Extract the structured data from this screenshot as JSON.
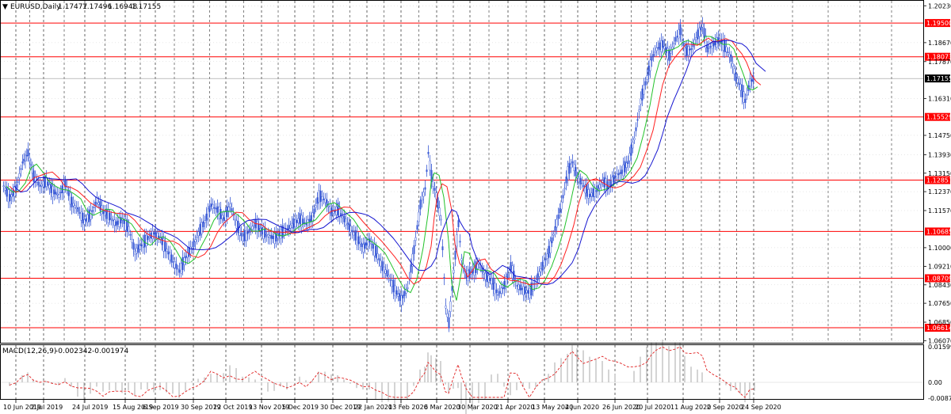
{
  "symbol": {
    "title": "EURUSD,Daily",
    "open": "1.17477",
    "high": "1.17496",
    "low": "1.16948",
    "close": "1.17155"
  },
  "macd": {
    "title": "MACD(12,26,9)",
    "main": "-0.002342",
    "signal": "-0.001974",
    "axis_labels": [
      "0.015993",
      "0.00",
      "-0.008748"
    ]
  },
  "price_axis": {
    "labels": [
      "1.20230",
      "1.18670",
      "1.17870",
      "1.16310",
      "1.14750",
      "1.13930",
      "1.13150",
      "1.12370",
      "1.11570",
      "1.10000",
      "1.09210",
      "1.08430",
      "1.07650",
      "1.06850",
      "1.06070"
    ]
  },
  "current_price": "1.17155",
  "horizontal_lines": [
    {
      "label": "1.19500",
      "value": 1.195
    },
    {
      "label": "1.18073",
      "value": 1.18073
    },
    {
      "label": "1.15529",
      "value": 1.15529
    },
    {
      "label": "1.12857",
      "value": 1.12857
    },
    {
      "label": "1.10685",
      "value": 1.10685
    },
    {
      "label": "1.08709",
      "value": 1.08709
    },
    {
      "label": "1.06614",
      "value": 1.06614
    }
  ],
  "date_labels": [
    "10 Jun 2019",
    "2 Jul 2019",
    "24 Jul 2019",
    "15 Aug 2019",
    "6 Sep 2019",
    "30 Sep 2019",
    "22 Oct 2019",
    "13 Nov 2019",
    "5 Dec 2019",
    "30 Dec 2019",
    "22 Jan 2020",
    "13 Feb 2020",
    "6 Mar 2020",
    "30 Mar 2020",
    "21 Apr 2020",
    "13 May 2020",
    "4 Jun 2020",
    "26 Jun 2020",
    "20 Jul 2020",
    "11 Aug 2020",
    "2 Sep 2020",
    "24 Sep 2020"
  ],
  "colors": {
    "candles": "#3b5bd6",
    "ma_fast": "#22c22a",
    "ma_mid": "#ff2020",
    "ma_slow": "#1515d0",
    "levels": "#ff0000",
    "macd_hist": "#b8b8b8",
    "macd_signal": "#e02020"
  },
  "chart_data": {
    "type": "line",
    "ylim": [
      1.0607,
      1.2023
    ],
    "x": [
      "10 Jun 2019",
      "2 Jul 2019",
      "24 Jul 2019",
      "15 Aug 2019",
      "6 Sep 2019",
      "30 Sep 2019",
      "22 Oct 2019",
      "13 Nov 2019",
      "5 Dec 2019",
      "30 Dec 2019",
      "22 Jan 2020",
      "13 Feb 2020",
      "6 Mar 2020",
      "30 Mar 2020",
      "21 Apr 2020",
      "13 May 2020",
      "4 Jun 2020",
      "26 Jun 2020",
      "20 Jul 2020",
      "11 Aug 2020",
      "2 Sep 2020",
      "24 Sep 2020"
    ],
    "series": [
      {
        "values": [
          1.128,
          1.136,
          1.121,
          1.114,
          1.106,
          1.096,
          1.111,
          1.105,
          1.109,
          1.119,
          1.108,
          1.083,
          1.124,
          1.101,
          1.086,
          1.088,
          1.13,
          1.127,
          1.148,
          1.182,
          1.186,
          1.171
        ]
      }
    ]
  }
}
